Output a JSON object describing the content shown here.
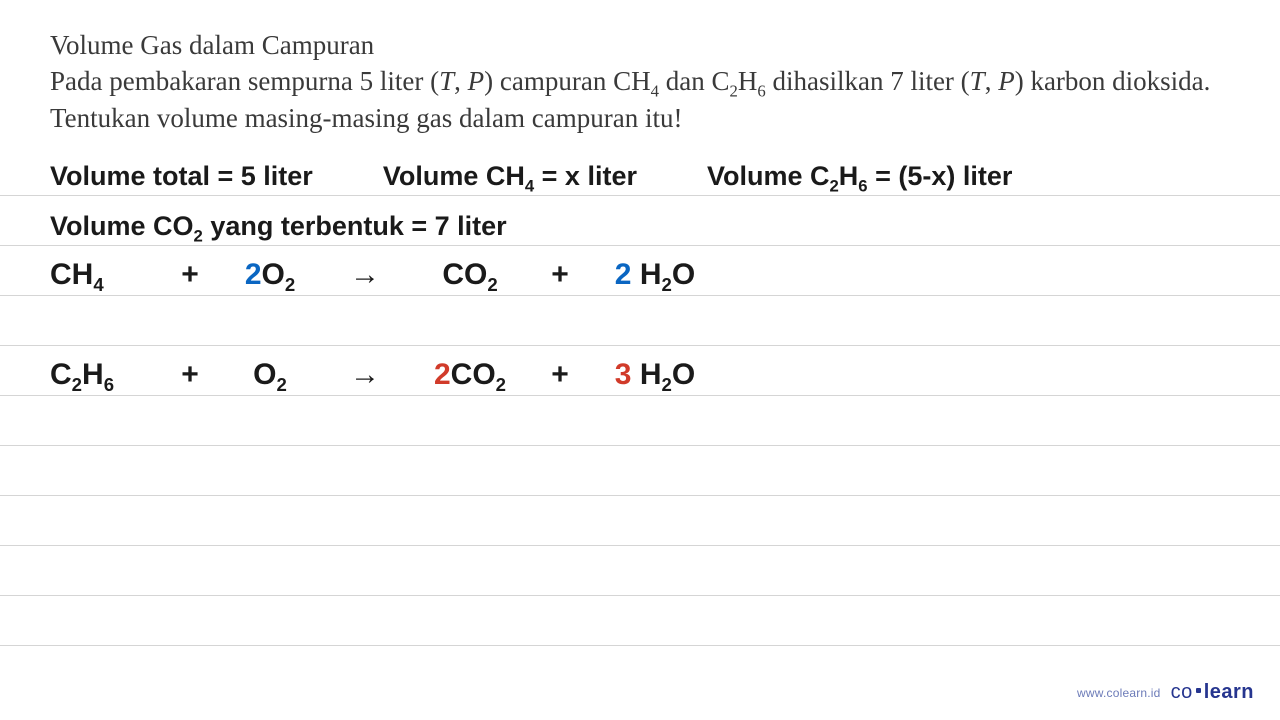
{
  "colors": {
    "text": "#3a3a3a",
    "ink": "#1a1a1a",
    "rule": "#d5d5d5",
    "highlight_blue": "#0a66c2",
    "highlight_red": "#d13b2a",
    "brand": "#26358f"
  },
  "header": {
    "title": "Volume Gas dalam Campuran",
    "body_html": "Pada pembakaran sempurna 5 liter (<span class=\"italic\">T</span>, <span class=\"italic\">P</span>) campuran CH<sub>4</sub> dan C<sub>2</sub>H<sub>6</sub> dihasilkan 7 liter (<span class=\"italic\">T</span>, <span class=\"italic\">P</span>) karbon dioksida. Tentukan volume masing-masing gas dalam campuran itu!"
  },
  "work": {
    "line1_a": "Volume total = 5 liter",
    "line1_b_html": "Volume CH<sub>4</sub> = x liter",
    "line1_c_html": "Volume C<sub>2</sub>H<sub>6</sub> = (5-x) liter",
    "line2_html": "Volume CO<sub>2</sub> yang terbentuk = 7 liter"
  },
  "equations": [
    {
      "reactant1_html": "CH<sub>4</sub>",
      "reactant2_coef": "2",
      "reactant2_coef_color": "#0a66c2",
      "reactant2_html": "O<sub>2</sub>",
      "product1_coef": "",
      "product1_html": "CO<sub>2</sub>",
      "product2_coef": "2",
      "product2_coef_color": "#0a66c2",
      "product2_html": "H<sub>2</sub>O"
    },
    {
      "reactant1_html": "C<sub>2</sub>H<sub>6</sub>",
      "reactant2_coef": "",
      "reactant2_coef_color": "",
      "reactant2_html": "O<sub>2</sub>",
      "product1_coef": "2",
      "product1_coef_color": "#d13b2a",
      "product1_html": "CO<sub>2</sub>",
      "product2_coef": "3",
      "product2_coef_color": "#d13b2a",
      "product2_html": "H<sub>2</sub>O"
    }
  ],
  "footer": {
    "url": "www.colearn.id",
    "brand_prefix": "co",
    "brand_suffix": "learn"
  }
}
